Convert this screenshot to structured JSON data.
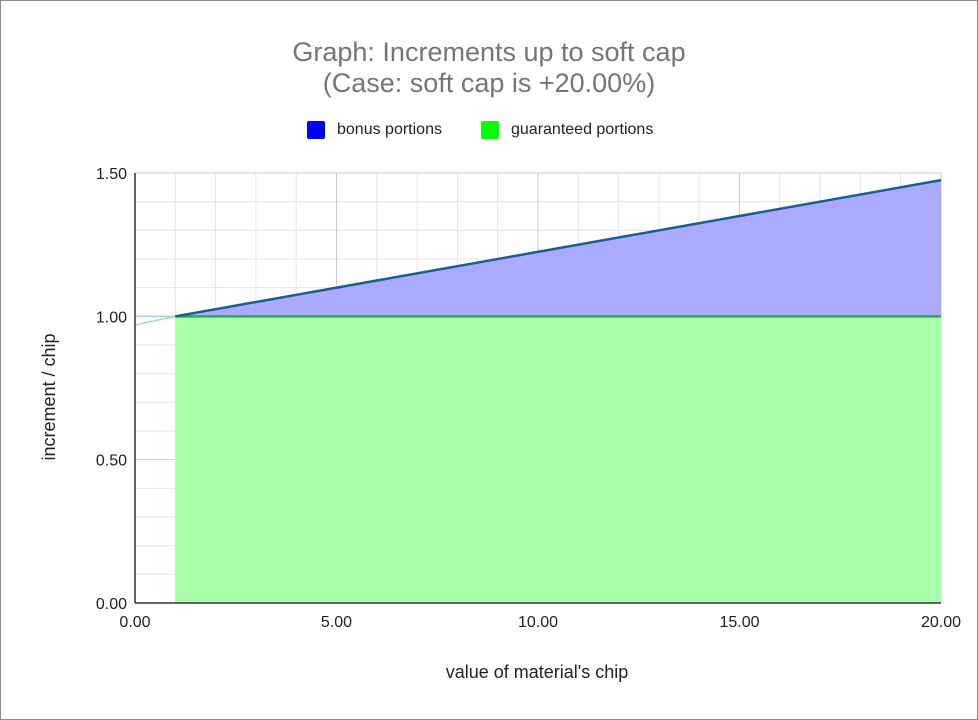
{
  "chart_data": {
    "type": "area",
    "title": "Graph: Increments up to soft cap",
    "subtitle": "(Case: soft cap is +20.00%)",
    "xlabel": "value of material's chip",
    "ylabel": "increment / chip",
    "xlim": [
      0,
      20
    ],
    "ylim": [
      0,
      1.5
    ],
    "x_ticks": [
      "0.00",
      "5.00",
      "10.00",
      "15.00",
      "20.00"
    ],
    "y_ticks": [
      "0.00",
      "0.50",
      "1.00",
      "1.50"
    ],
    "x_tick_values": [
      0,
      5,
      10,
      15,
      20
    ],
    "y_tick_values": [
      0,
      0.5,
      1.0,
      1.5
    ],
    "grid": true,
    "legend_position": "top",
    "stacked": true,
    "series": [
      {
        "name": "bonus portions",
        "color": "#0000ff",
        "x": [
          1,
          20
        ],
        "values": [
          0,
          0.475
        ]
      },
      {
        "name": "guaranteed portions",
        "color": "#00ff00",
        "x": [
          1,
          20
        ],
        "values": [
          1.0,
          1.0
        ]
      }
    ]
  },
  "colors": {
    "bonus_fill": "#aaaaff",
    "bonus_line": "#1d5e8f",
    "guaranteed_fill": "#aaffaa",
    "guaranteed_line": "#2fa858"
  }
}
